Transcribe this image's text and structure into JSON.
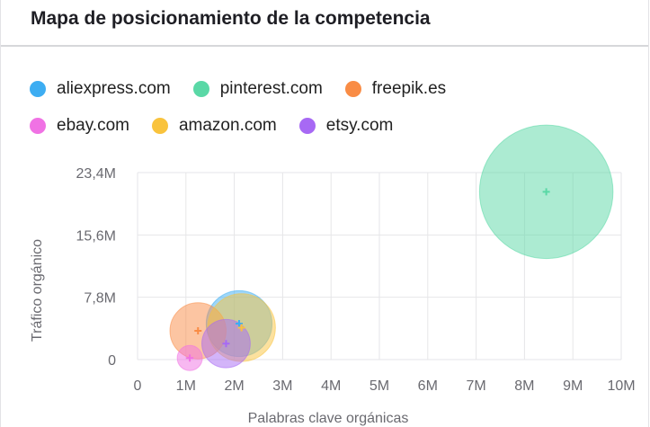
{
  "title": "Mapa de posicionamiento de la competencia",
  "legend": [
    [
      {
        "label": "aliexpress.com",
        "color": "#3dadf2"
      },
      {
        "label": "pinterest.com",
        "color": "#5ad8a6"
      },
      {
        "label": "freepik.es",
        "color": "#f98c45"
      }
    ],
    [
      {
        "label": "ebay.com",
        "color": "#f072e4"
      },
      {
        "label": "amazon.com",
        "color": "#f9c33d"
      },
      {
        "label": "etsy.com",
        "color": "#a769f4"
      }
    ]
  ],
  "chart_data": {
    "type": "scatter",
    "xlabel": "Palabras clave orgánicas",
    "ylabel": "Tráfico orgánico",
    "xlim": [
      0,
      10
    ],
    "ylim": [
      0,
      23.4
    ],
    "x_ticks": [
      "0",
      "1M",
      "2M",
      "3M",
      "4M",
      "5M",
      "6M",
      "7M",
      "8M",
      "9M",
      "10M"
    ],
    "y_ticks": [
      "0",
      "7,8M",
      "15,6M",
      "23,4M"
    ],
    "grid": true,
    "legend_position": "top",
    "series": [
      {
        "name": "aliexpress.com",
        "color": "#3dadf2",
        "x": 2.1,
        "y": 4.5,
        "size": 0.68
      },
      {
        "name": "pinterest.com",
        "color": "#5ad8a6",
        "x": 8.45,
        "y": 21.0,
        "size": 1.38
      },
      {
        "name": "freepik.es",
        "color": "#f98c45",
        "x": 1.25,
        "y": 3.6,
        "size": 0.58
      },
      {
        "name": "ebay.com",
        "color": "#f072e4",
        "x": 1.08,
        "y": 0.2,
        "size": 0.26
      },
      {
        "name": "amazon.com",
        "color": "#f9c33d",
        "x": 2.15,
        "y": 4.0,
        "size": 0.7
      },
      {
        "name": "etsy.com",
        "color": "#a769f4",
        "x": 1.83,
        "y": 2.0,
        "size": 0.5
      }
    ]
  }
}
